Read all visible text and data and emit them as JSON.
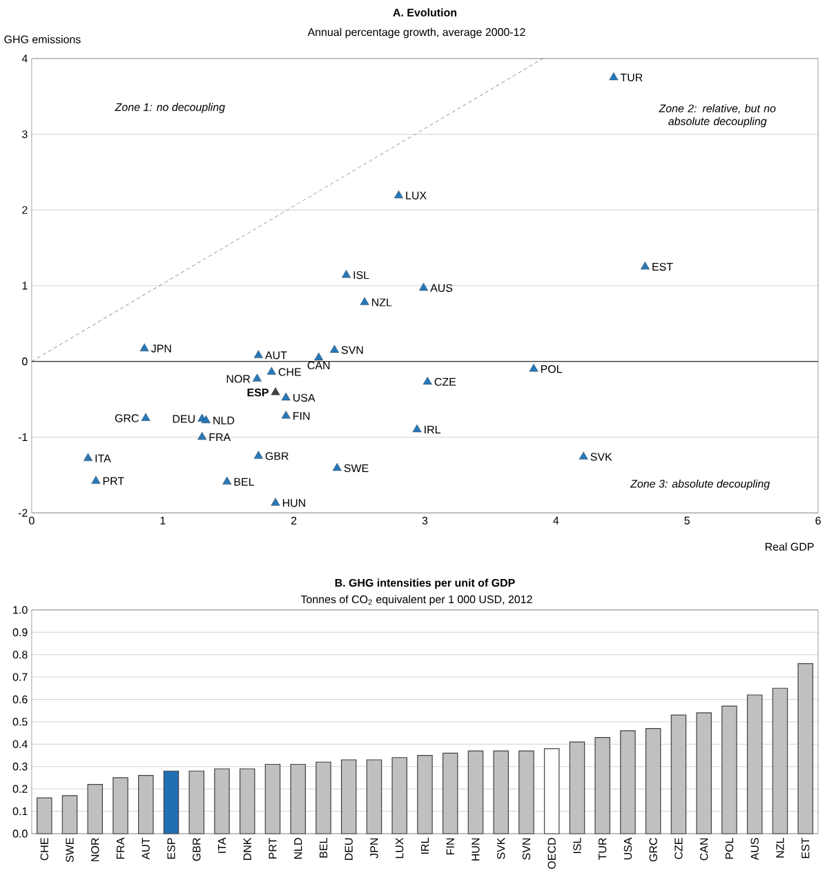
{
  "chart_data": [
    {
      "type": "scatter",
      "title": "A. Evolution",
      "subtitle": "Annual percentage growth, average 2000-12",
      "xlabel": "Real GDP",
      "ylabel": "GHG emissions",
      "xlim": [
        0,
        6
      ],
      "ylim": [
        -2,
        4
      ],
      "xticks": [
        0,
        1,
        2,
        3,
        4,
        5,
        6
      ],
      "yticks": [
        -2,
        -1,
        0,
        1,
        2,
        3,
        4
      ],
      "grid": "y",
      "ref_lines": [
        {
          "axis": "y",
          "value": 0,
          "color": "#000000"
        }
      ],
      "series": [
        {
          "type": "line",
          "x": [
            0,
            3.9
          ],
          "values": [
            0,
            4
          ],
          "color": "#a6a6a6",
          "line_style": "dashed"
        },
        {
          "type": "scatter",
          "marker": "triangle",
          "x": [
            4.44,
            2.8,
            2.4,
            2.99,
            2.54,
            4.68,
            0.86,
            1.73,
            2.31,
            2.19,
            1.83,
            1.72,
            1.86,
            1.94,
            3.83,
            3.02,
            0.87,
            1.3,
            1.33,
            1.94,
            2.94,
            1.3,
            0.43,
            1.73,
            2.33,
            4.21,
            0.49,
            1.49,
            1.86
          ],
          "values": [
            3.75,
            2.19,
            1.14,
            0.97,
            0.78,
            1.25,
            0.17,
            0.08,
            0.15,
            0.05,
            -0.14,
            -0.23,
            -0.41,
            -0.48,
            -0.1,
            -0.27,
            -0.75,
            -0.76,
            -0.78,
            -0.72,
            -0.9,
            -1.0,
            -1.28,
            -1.25,
            -1.41,
            -1.26,
            -1.58,
            -1.59,
            -1.87
          ],
          "colors": [
            "#2878b8",
            "#2878b8",
            "#2878b8",
            "#2878b8",
            "#2878b8",
            "#2878b8",
            "#2878b8",
            "#2878b8",
            "#2878b8",
            "#2878b8",
            "#2878b8",
            "#2878b8",
            "#404040",
            "#2878b8",
            "#2878b8",
            "#2878b8",
            "#2878b8",
            "#2878b8",
            "#2878b8",
            "#2878b8",
            "#2878b8",
            "#2878b8",
            "#2878b8",
            "#2878b8",
            "#2878b8",
            "#2878b8",
            "#2878b8",
            "#2878b8",
            "#2878b8"
          ]
        }
      ],
      "annotations": [
        "Zone 1: no decoupling",
        "Zone 2: relative, but no absolute decoupling",
        "Zone 3: absolute decoupling",
        {
          "text": "TUR",
          "x": 4.44,
          "y": 3.75
        },
        {
          "text": "LUX",
          "x": 2.8,
          "y": 2.19
        },
        {
          "text": "ISL",
          "x": 2.4,
          "y": 1.14
        },
        {
          "text": "AUS",
          "x": 2.99,
          "y": 0.97
        },
        {
          "text": "NZL",
          "x": 2.54,
          "y": 0.78
        },
        {
          "text": "EST",
          "x": 4.68,
          "y": 1.25
        },
        {
          "text": "JPN",
          "x": 0.86,
          "y": 0.17
        },
        {
          "text": "AUT",
          "x": 1.73,
          "y": 0.08
        },
        {
          "text": "SVN",
          "x": 2.31,
          "y": 0.15
        },
        {
          "text": "CAN",
          "x": 2.19,
          "y": 0.05
        },
        {
          "text": "CHE",
          "x": 1.83,
          "y": -0.14
        },
        {
          "text": "NOR",
          "x": 1.72,
          "y": -0.23
        },
        {
          "text": "**ESP**",
          "x": 1.86,
          "y": -0.41
        },
        {
          "text": "USA",
          "x": 1.94,
          "y": -0.48
        },
        {
          "text": "POL",
          "x": 3.83,
          "y": -0.1
        },
        {
          "text": "CZE",
          "x": 3.02,
          "y": -0.27
        },
        {
          "text": "GRC",
          "x": 0.87,
          "y": -0.75
        },
        {
          "text": "DEU",
          "x": 1.3,
          "y": -0.76
        },
        {
          "text": "NLD",
          "x": 1.33,
          "y": -0.78
        },
        {
          "text": "FIN",
          "x": 1.94,
          "y": -0.72
        },
        {
          "text": "IRL",
          "x": 2.94,
          "y": -0.9
        },
        {
          "text": "FRA",
          "x": 1.3,
          "y": -1.0
        },
        {
          "text": "ITA",
          "x": 0.43,
          "y": -1.28
        },
        {
          "text": "GBR",
          "x": 1.73,
          "y": -1.25
        },
        {
          "text": "SWE",
          "x": 2.33,
          "y": -1.41
        },
        {
          "text": "SVK",
          "x": 4.21,
          "y": -1.26
        },
        {
          "text": "PRT",
          "x": 0.49,
          "y": -1.58
        },
        {
          "text": "BEL",
          "x": 1.49,
          "y": -1.59
        },
        {
          "text": "HUN",
          "x": 1.86,
          "y": -1.87
        }
      ]
    },
    {
      "type": "bar",
      "title": "B. GHG intensities per unit of GDP",
      "subtitle": "Tonnes of CO$_{2}$ equivalent per 1 000 USD, 2012",
      "categories": [
        "CHE",
        "SWE",
        "NOR",
        "FRA",
        "AUT",
        "ESP",
        "GBR",
        "ITA",
        "DNK",
        "PRT",
        "NLD",
        "BEL",
        "DEU",
        "JPN",
        "LUX",
        "IRL",
        "FIN",
        "HUN",
        "SVK",
        "SVN",
        "OECD",
        "ISL",
        "TUR",
        "USA",
        "GRC",
        "CZE",
        "CAN",
        "POL",
        "AUS",
        "NZL",
        "EST"
      ],
      "values": [
        0.16,
        0.17,
        0.22,
        0.25,
        0.26,
        0.28,
        0.28,
        0.29,
        0.29,
        0.31,
        0.31,
        0.32,
        0.33,
        0.33,
        0.34,
        0.35,
        0.36,
        0.37,
        0.37,
        0.37,
        0.38,
        0.41,
        0.43,
        0.46,
        0.47,
        0.53,
        0.54,
        0.57,
        0.62,
        0.65,
        0.76
      ],
      "colors": [
        "#c0c0c0",
        "#c0c0c0",
        "#c0c0c0",
        "#c0c0c0",
        "#c0c0c0",
        "#1f6fb4",
        "#c0c0c0",
        "#c0c0c0",
        "#c0c0c0",
        "#c0c0c0",
        "#c0c0c0",
        "#c0c0c0",
        "#c0c0c0",
        "#c0c0c0",
        "#c0c0c0",
        "#c0c0c0",
        "#c0c0c0",
        "#c0c0c0",
        "#c0c0c0",
        "#c0c0c0",
        "#ffffff",
        "#c0c0c0",
        "#c0c0c0",
        "#c0c0c0",
        "#c0c0c0",
        "#c0c0c0",
        "#c0c0c0",
        "#c0c0c0",
        "#c0c0c0",
        "#c0c0c0",
        "#c0c0c0"
      ],
      "ylim": [
        0,
        1
      ],
      "yticks": [
        {
          "value": 0,
          "label": "0.0"
        },
        0.1,
        0.2,
        0.3,
        0.4,
        0.5,
        0.6,
        0.7,
        0.8,
        0.9,
        {
          "value": 1,
          "label": "1.0"
        }
      ],
      "grid": "y"
    }
  ]
}
